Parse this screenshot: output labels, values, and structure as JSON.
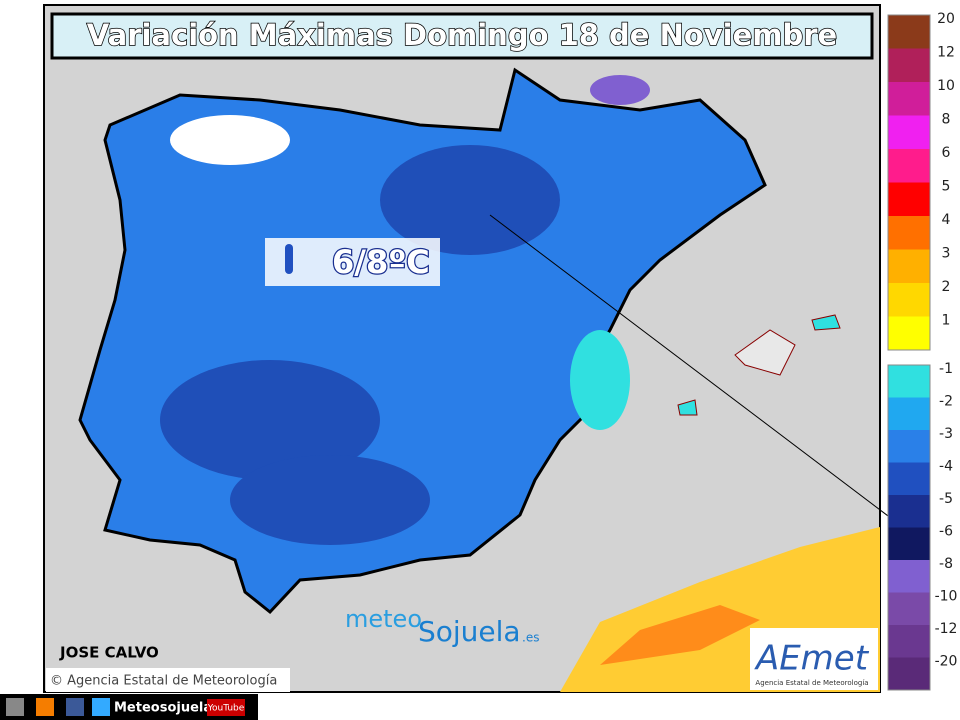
{
  "header": {
    "title": "Variación Máximas Domingo 18 de Noviembre"
  },
  "callout": {
    "label": "6/8ºC"
  },
  "watermark": {
    "prefix": "meteo",
    "brand": "Sojuela",
    "suffix": ".es"
  },
  "author": "JOSE CALVO",
  "credit": "© Agencia Estatal de Meteorología",
  "logo": {
    "name": "AEmet",
    "subtitle": "Agencia Estatal de Meteorología"
  },
  "footer": {
    "site": "Meteosojuela",
    "video": "YouTube"
  },
  "legend": {
    "upper": [
      {
        "label": "20",
        "color": "#8b3a1a"
      },
      {
        "label": "12",
        "color": "#b0205a"
      },
      {
        "label": "10",
        "color": "#d01e9a"
      },
      {
        "label": "8",
        "color": "#f020f0"
      },
      {
        "label": "6",
        "color": "#ff1c8c"
      },
      {
        "label": "5",
        "color": "#ff0000"
      },
      {
        "label": "4",
        "color": "#ff7000"
      },
      {
        "label": "3",
        "color": "#ffb000"
      },
      {
        "label": "2",
        "color": "#ffd800"
      },
      {
        "label": "1",
        "color": "#ffff00"
      }
    ],
    "lower": [
      {
        "label": "-1",
        "color": "#30e0e0"
      },
      {
        "label": "-2",
        "color": "#20a8f0"
      },
      {
        "label": "-3",
        "color": "#2a80e8"
      },
      {
        "label": "-4",
        "color": "#2050c0"
      },
      {
        "label": "-5",
        "color": "#1a2f90"
      },
      {
        "label": "-6",
        "color": "#101860"
      },
      {
        "label": "-8",
        "color": "#8060d0"
      },
      {
        "label": "-10",
        "color": "#7a4aa8"
      },
      {
        "label": "-12",
        "color": "#6a3890"
      },
      {
        "label": "-20",
        "color": "#5a2a78"
      }
    ]
  }
}
